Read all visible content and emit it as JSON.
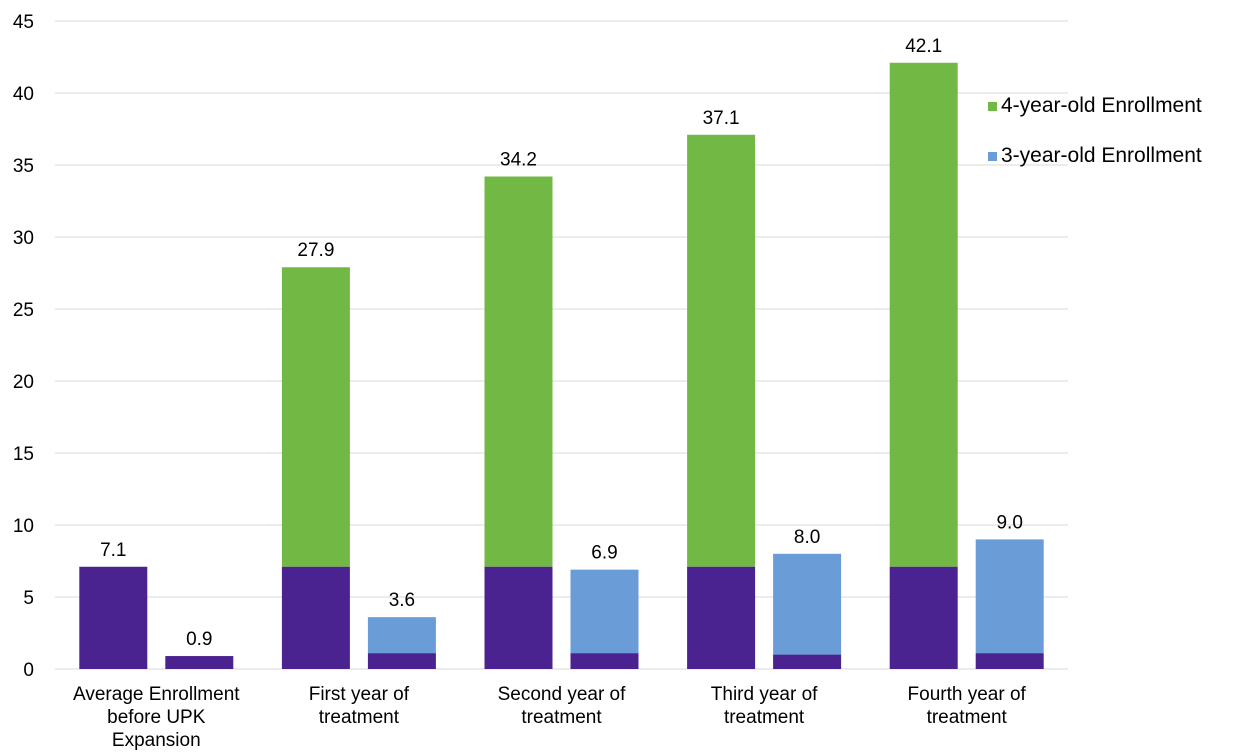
{
  "chart_data": {
    "type": "bar",
    "categories": [
      [
        "Average Enrollment",
        "before UPK",
        "Expansion"
      ],
      [
        "First year of",
        "treatment"
      ],
      [
        "Second year of",
        "treatment"
      ],
      [
        "Third year of",
        "treatment"
      ],
      [
        "Fourth year of",
        "treatment"
      ]
    ],
    "ylim": [
      0,
      45
    ],
    "yticks": [
      0,
      5,
      10,
      15,
      20,
      25,
      30,
      35,
      40,
      45
    ],
    "grid": true,
    "legend_position": "right",
    "series": [
      {
        "name": "4-year-old Enrollment",
        "color": "#72B844",
        "values": [
          7.1,
          27.9,
          34.2,
          37.1,
          42.1
        ],
        "labels": [
          "7.1",
          "27.9",
          "34.2",
          "37.1",
          "42.1"
        ]
      },
      {
        "name": "3-year-old Enrollment",
        "color": "#6A9DD8",
        "values": [
          0.9,
          3.6,
          6.9,
          8.0,
          9.0
        ],
        "labels": [
          "0.9",
          "3.6",
          "6.9",
          "8.0",
          "9.0"
        ]
      }
    ],
    "baseline": {
      "color": "#4B2391",
      "values_4yr": [
        7.1,
        7.1,
        7.1,
        7.1,
        7.1
      ],
      "values_3yr": [
        0.9,
        1.1,
        1.1,
        1.0,
        1.1
      ]
    }
  }
}
